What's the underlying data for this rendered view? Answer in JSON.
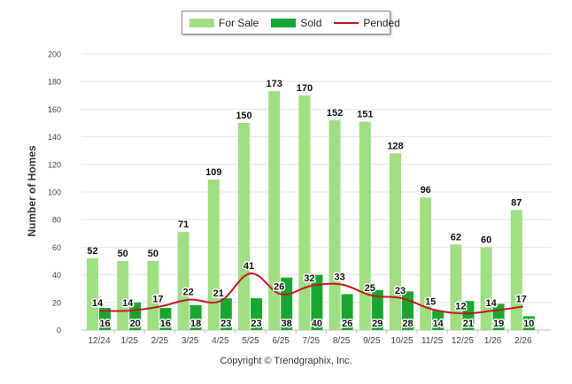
{
  "legend": {
    "for_sale": "For Sale",
    "sold": "Sold",
    "pended": "Pended"
  },
  "colors": {
    "for_sale": "#a0de84",
    "sold": "#19a630",
    "pended": "#c0191c"
  },
  "footer": {
    "copyright": "Copyright © Trendgraphix, Inc."
  },
  "chart_data": {
    "type": "bar",
    "title": "",
    "xlabel": "",
    "ylabel": "Number of Homes",
    "ylim": [
      0,
      200
    ],
    "yticks": [
      0,
      20,
      40,
      60,
      80,
      100,
      120,
      140,
      160,
      180,
      200
    ],
    "grid": true,
    "legend_position": "top-center",
    "categories": [
      "12/24",
      "1/25",
      "2/25",
      "3/25",
      "4/25",
      "5/25",
      "6/25",
      "7/25",
      "8/25",
      "9/25",
      "10/25",
      "11/25",
      "12/25",
      "1/26",
      "2/26"
    ],
    "series": [
      {
        "name": "For Sale",
        "type": "bar",
        "values": [
          52,
          50,
          50,
          71,
          109,
          150,
          173,
          170,
          152,
          151,
          128,
          96,
          62,
          60,
          87
        ]
      },
      {
        "name": "Sold",
        "type": "bar",
        "values": [
          16,
          20,
          16,
          18,
          23,
          23,
          38,
          40,
          26,
          29,
          28,
          14,
          21,
          19,
          10
        ]
      },
      {
        "name": "Pended",
        "type": "line",
        "values": [
          14,
          14,
          17,
          22,
          21,
          41,
          26,
          32,
          33,
          25,
          23,
          15,
          12,
          14,
          17
        ]
      }
    ]
  }
}
